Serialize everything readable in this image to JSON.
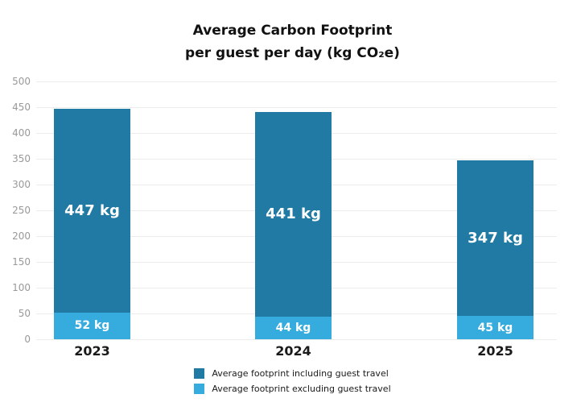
{
  "title": {
    "line1": "Average Carbon Footprint",
    "line2": "per guest per day (kg CO₂e)"
  },
  "colors": {
    "including_series": "#207aa3",
    "excluding_series": "#35abde",
    "gridline": "#ececec",
    "ytick_label": "#999999",
    "xtick_label": "#1a1a1a",
    "bar_value_label": "#ffffff",
    "background": "#ffffff"
  },
  "chart_data": {
    "type": "bar",
    "title": "Average Carbon Footprint per guest per day (kg CO₂e)",
    "categories": [
      "2023",
      "2024",
      "2025"
    ],
    "series": [
      {
        "name": "Average footprint including guest travel",
        "values": [
          447,
          441,
          347
        ],
        "labels": [
          "447 kg",
          "441 kg",
          "347 kg"
        ],
        "color": "#207aa3"
      },
      {
        "name": "Average footprint excluding guest travel",
        "values": [
          52,
          44,
          45
        ],
        "labels": [
          "52 kg",
          "44 kg",
          "45 kg"
        ],
        "color": "#35abde"
      }
    ],
    "xlabel": "",
    "ylabel": "",
    "ylim": [
      0,
      500
    ],
    "yticks": [
      0,
      50,
      100,
      150,
      200,
      250,
      300,
      350,
      400,
      450,
      500
    ],
    "grid": true,
    "legend_position": "bottom"
  }
}
